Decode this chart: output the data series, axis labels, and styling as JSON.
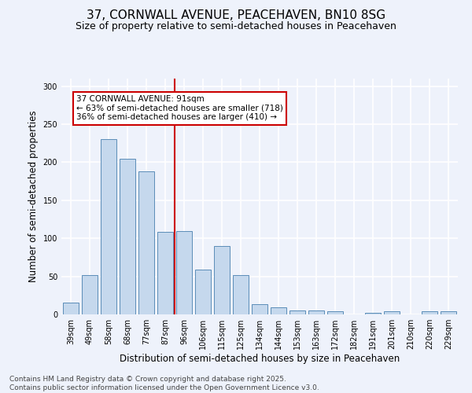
{
  "title1": "37, CORNWALL AVENUE, PEACEHAVEN, BN10 8SG",
  "title2": "Size of property relative to semi-detached houses in Peacehaven",
  "xlabel": "Distribution of semi-detached houses by size in Peacehaven",
  "ylabel": "Number of semi-detached properties",
  "categories": [
    "39sqm",
    "49sqm",
    "58sqm",
    "68sqm",
    "77sqm",
    "87sqm",
    "96sqm",
    "106sqm",
    "115sqm",
    "125sqm",
    "134sqm",
    "144sqm",
    "153sqm",
    "163sqm",
    "172sqm",
    "182sqm",
    "191sqm",
    "201sqm",
    "210sqm",
    "220sqm",
    "229sqm"
  ],
  "values": [
    16,
    52,
    230,
    205,
    188,
    108,
    110,
    59,
    90,
    52,
    13,
    9,
    5,
    5,
    4,
    0,
    2,
    4,
    0,
    4,
    4
  ],
  "bar_color": "#c5d8ed",
  "bar_edge_color": "#5b8db8",
  "vline_x_index": 5.5,
  "vline_color": "#cc0000",
  "annotation_title": "37 CORNWALL AVENUE: 91sqm",
  "annotation_line1": "← 63% of semi-detached houses are smaller (718)",
  "annotation_line2": "36% of semi-detached houses are larger (410) →",
  "annotation_box_color": "#cc0000",
  "annotation_bg": "#ffffff",
  "ylim_max": 310,
  "footer1": "Contains HM Land Registry data © Crown copyright and database right 2025.",
  "footer2": "Contains public sector information licensed under the Open Government Licence v3.0.",
  "bg_color": "#eef2fb",
  "grid_color": "#ffffff",
  "title1_fontsize": 11,
  "title2_fontsize": 9,
  "axis_label_fontsize": 8.5,
  "tick_fontsize": 7,
  "footer_fontsize": 6.5,
  "annotation_fontsize": 7.5
}
